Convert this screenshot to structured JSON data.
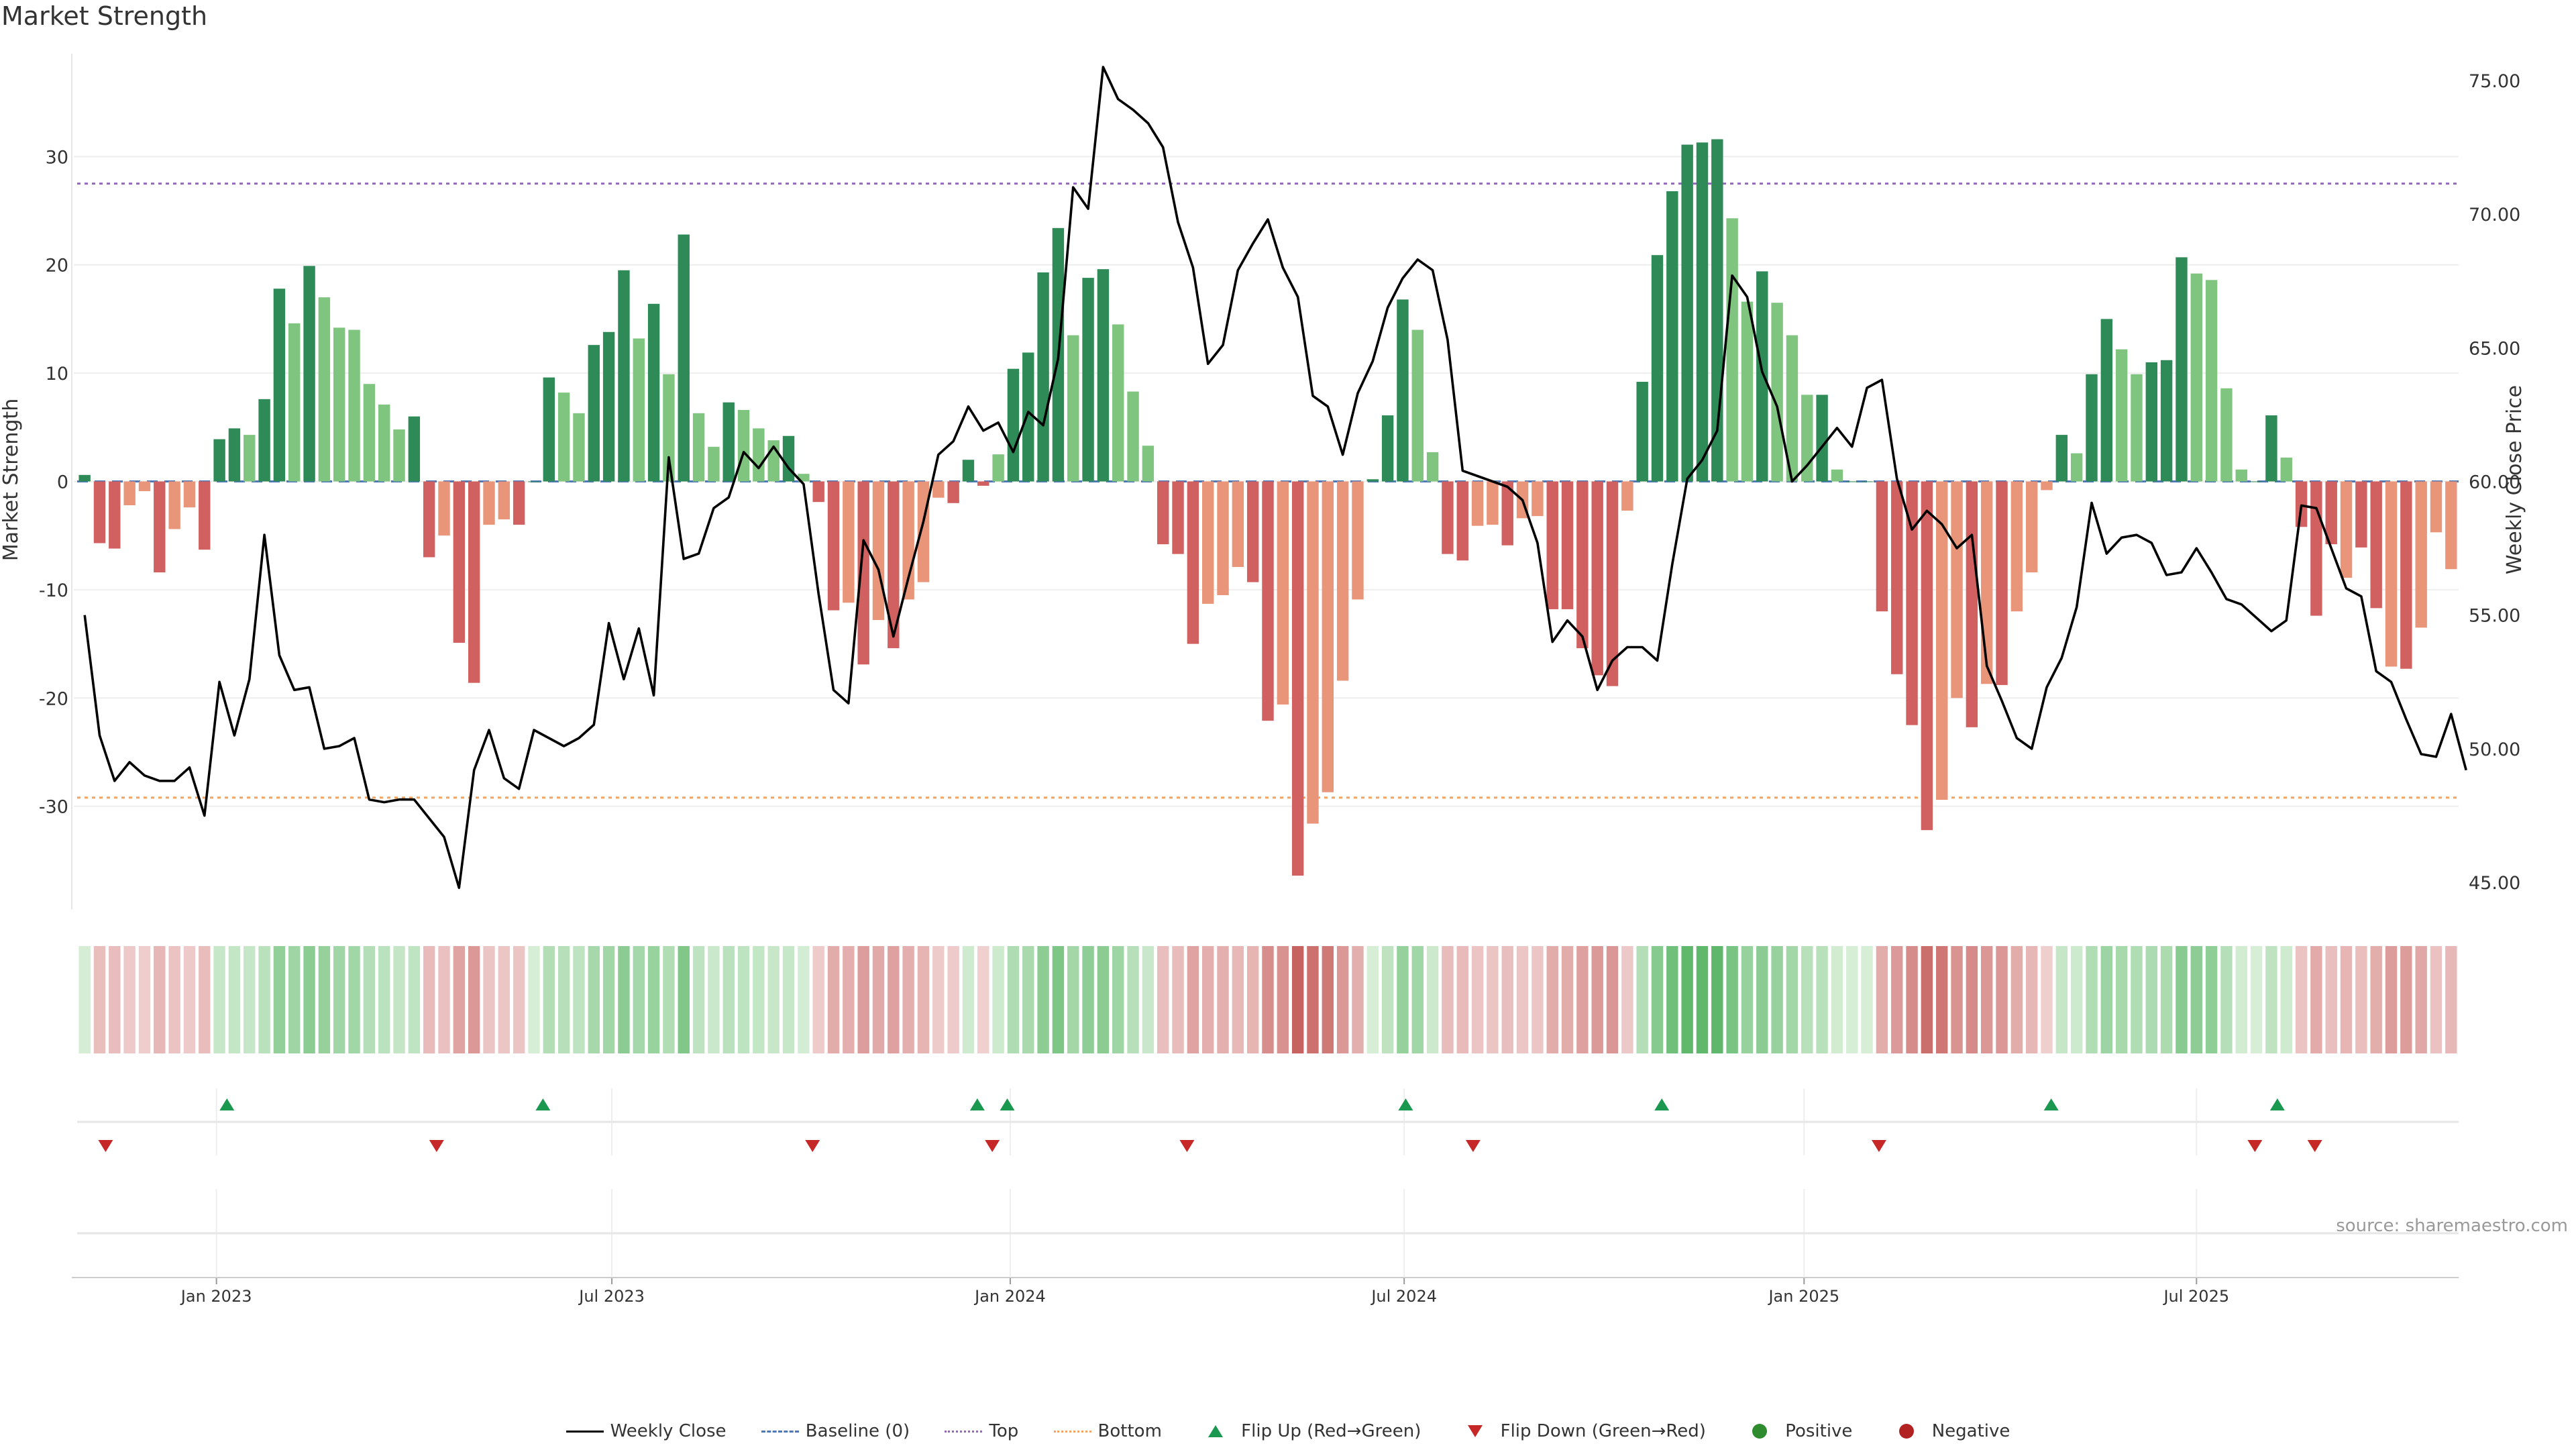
{
  "title": "Market Strength",
  "source": "source: sharemaestro.com",
  "legend": {
    "weekly_close": "Weekly Close",
    "baseline": "Baseline (0)",
    "top": "Top",
    "bottom": "Bottom",
    "flip_up": "Flip Up (Red→Green)",
    "flip_down": "Flip Down (Green→Red)",
    "positive": "Positive",
    "negative": "Negative"
  },
  "colors": {
    "pos_dark": "#2e8b57",
    "pos_light": "#7fc47f",
    "neg_dark": "#d16060",
    "neg_light": "#e8957a",
    "line": "#000000",
    "top": "#9467bd",
    "bottom": "#f4a460",
    "baseline": "#4f78b5",
    "flip_up": "#1a9850",
    "flip_down": "#c62828"
  },
  "chart_data": {
    "type": "bar",
    "ylabel": "Market Strength",
    "y2label": "Weekly Close Price",
    "ylim": [
      -39.5,
      39.5
    ],
    "y_ticks": [
      -30,
      -20,
      -10,
      0,
      10,
      20,
      30
    ],
    "y2lim": [
      44,
      76
    ],
    "y2_ticks": [
      "45.00",
      "50.00",
      "55.00",
      "60.00",
      "65.00",
      "70.00",
      "75.00"
    ],
    "top_line": 27.5,
    "bottom_line": -29.2,
    "x_tick_labels": [
      "Jan 2023",
      "Jul 2023",
      "Jan 2024",
      "Jul 2024",
      "Jan 2025",
      "Jul 2025"
    ],
    "x_tick_index": [
      8.8,
      35.2,
      61.8,
      88.1,
      114.8,
      141
    ],
    "strength": [
      0.6,
      -5.7,
      -6.2,
      -2.2,
      -0.9,
      -8.4,
      -4.4,
      -2.4,
      -6.3,
      3.9,
      4.9,
      4.3,
      7.6,
      17.8,
      14.6,
      19.9,
      17.0,
      14.2,
      14.0,
      9.0,
      7.1,
      4.8,
      6.0,
      -7.0,
      -5.0,
      -14.9,
      -18.6,
      -4.0,
      -3.5,
      -4.0,
      0,
      9.6,
      8.2,
      6.3,
      12.6,
      13.8,
      19.5,
      13.2,
      16.4,
      9.9,
      22.8,
      6.3,
      3.2,
      7.3,
      6.6,
      4.9,
      3.8,
      4.2,
      0.7,
      -1.9,
      -11.9,
      -11.2,
      -16.9,
      -12.8,
      -15.4,
      -10.9,
      -9.3,
      -1.5,
      -2.0,
      2.0,
      -0.4,
      2.5,
      10.4,
      11.9,
      19.3,
      23.4,
      13.5,
      18.8,
      19.6,
      14.5,
      8.3,
      3.3,
      -5.8,
      -6.7,
      -15.0,
      -11.3,
      -10.5,
      -7.9,
      -9.3,
      -22.1,
      -20.6,
      -36.4,
      -31.6,
      -28.7,
      -18.4,
      -10.9,
      0.2,
      6.1,
      16.8,
      14.0,
      2.7,
      -6.7,
      -7.3,
      -4.1,
      -4.0,
      -5.9,
      -3.4,
      -3.2,
      -11.8,
      -11.8,
      -15.4,
      -17.9,
      -18.9,
      -2.7,
      9.2,
      20.9,
      26.8,
      31.1,
      31.3,
      31.6,
      24.3,
      16.6,
      19.4,
      16.5,
      13.5,
      8.0,
      8.0,
      1.1,
      0,
      0,
      -12.0,
      -17.8,
      -22.5,
      -32.2,
      -29.4,
      -20.0,
      -22.7,
      -18.7,
      -18.8,
      -12.0,
      -8.4,
      -0.8,
      4.3,
      2.6,
      9.9,
      15.0,
      12.2,
      9.9,
      11.0,
      11.2,
      20.7,
      19.2,
      18.6,
      8.6,
      1.1,
      0,
      6.1,
      2.2,
      -4.2,
      -12.4,
      -5.8,
      -8.9,
      -6.1,
      -11.7,
      -17.1,
      -17.3,
      -13.5,
      -4.7,
      -8.1
    ],
    "light": [
      0,
      0,
      0,
      1,
      1,
      0,
      1,
      1,
      0,
      0,
      0,
      1,
      0,
      0,
      1,
      0,
      1,
      1,
      1,
      1,
      1,
      1,
      0,
      0,
      1,
      0,
      0,
      1,
      1,
      0,
      0,
      0,
      1,
      1,
      0,
      0,
      0,
      1,
      0,
      1,
      0,
      1,
      1,
      0,
      1,
      1,
      1,
      0,
      1,
      0,
      0,
      1,
      0,
      1,
      0,
      1,
      1,
      1,
      0,
      0,
      0,
      1,
      0,
      0,
      0,
      0,
      1,
      0,
      0,
      1,
      1,
      1,
      0,
      0,
      0,
      1,
      1,
      1,
      0,
      0,
      1,
      0,
      1,
      1,
      1,
      1,
      0,
      0,
      0,
      1,
      1,
      0,
      0,
      1,
      1,
      0,
      1,
      1,
      0,
      0,
      0,
      0,
      0,
      1,
      0,
      0,
      0,
      0,
      0,
      0,
      1,
      1,
      0,
      1,
      1,
      1,
      0,
      1,
      0,
      0,
      0,
      0,
      0,
      0,
      1,
      1,
      0,
      1,
      0,
      1,
      1,
      1,
      0,
      1,
      0,
      0,
      1,
      1,
      0,
      0,
      0,
      1,
      1,
      1,
      1,
      0,
      0,
      1,
      0,
      0,
      0,
      1,
      0,
      0,
      1,
      0,
      1,
      1,
      1,
      0
    ],
    "close": [
      55.0,
      50.5,
      48.8,
      49.5,
      49.0,
      48.8,
      48.8,
      49.3,
      47.5,
      52.5,
      50.5,
      52.6,
      58.0,
      53.5,
      52.2,
      52.3,
      50.0,
      50.1,
      50.4,
      48.1,
      48.0,
      48.1,
      48.1,
      47.4,
      46.7,
      44.8,
      49.2,
      50.7,
      48.9,
      48.5,
      50.7,
      50.4,
      50.1,
      50.4,
      50.9,
      54.7,
      52.6,
      54.5,
      52.0,
      60.9,
      57.1,
      57.3,
      59.0,
      59.4,
      61.1,
      60.5,
      61.3,
      60.5,
      59.9,
      55.8,
      52.2,
      51.7,
      57.8,
      56.7,
      54.2,
      56.4,
      58.5,
      61.0,
      61.5,
      62.8,
      61.9,
      62.2,
      61.1,
      62.6,
      62.1,
      64.6,
      71.0,
      70.2,
      75.5,
      74.3,
      73.9,
      73.4,
      72.5,
      69.7,
      68.0,
      64.4,
      65.1,
      67.9,
      68.9,
      69.8,
      68.0,
      66.9,
      63.2,
      62.8,
      61.0,
      63.3,
      64.5,
      66.5,
      67.6,
      68.3,
      67.9,
      65.3,
      60.4,
      60.2,
      60.0,
      59.8,
      59.3,
      57.7,
      54.0,
      54.8,
      54.2,
      52.2,
      53.3,
      53.8,
      53.8,
      53.3,
      56.9,
      60.1,
      60.8,
      61.9,
      67.7,
      66.9,
      64.1,
      62.8,
      60.0,
      60.6,
      61.3,
      62.0,
      61.3,
      63.5,
      63.8,
      60.1,
      58.2,
      58.9,
      58.4,
      57.5,
      58.0,
      53.1,
      51.8,
      50.4,
      50.0,
      52.3,
      53.4,
      55.3,
      59.2,
      57.3,
      57.9,
      58.0,
      57.7,
      56.5,
      56.6,
      57.5,
      56.6,
      55.6,
      55.4,
      54.9,
      54.4,
      54.8,
      59.1,
      59.0,
      57.5,
      56.0,
      55.7,
      52.9,
      52.5,
      51.1,
      49.8,
      49.7,
      51.3,
      49.2
    ],
    "flip_up_index": [
      9.5,
      30.6,
      59.6,
      61.6,
      88.2,
      105.3,
      131.3,
      146.4
    ],
    "flip_down_index": [
      1.4,
      23.5,
      48.6,
      60.6,
      73.6,
      92.7,
      119.8,
      144.9,
      148.9
    ]
  }
}
